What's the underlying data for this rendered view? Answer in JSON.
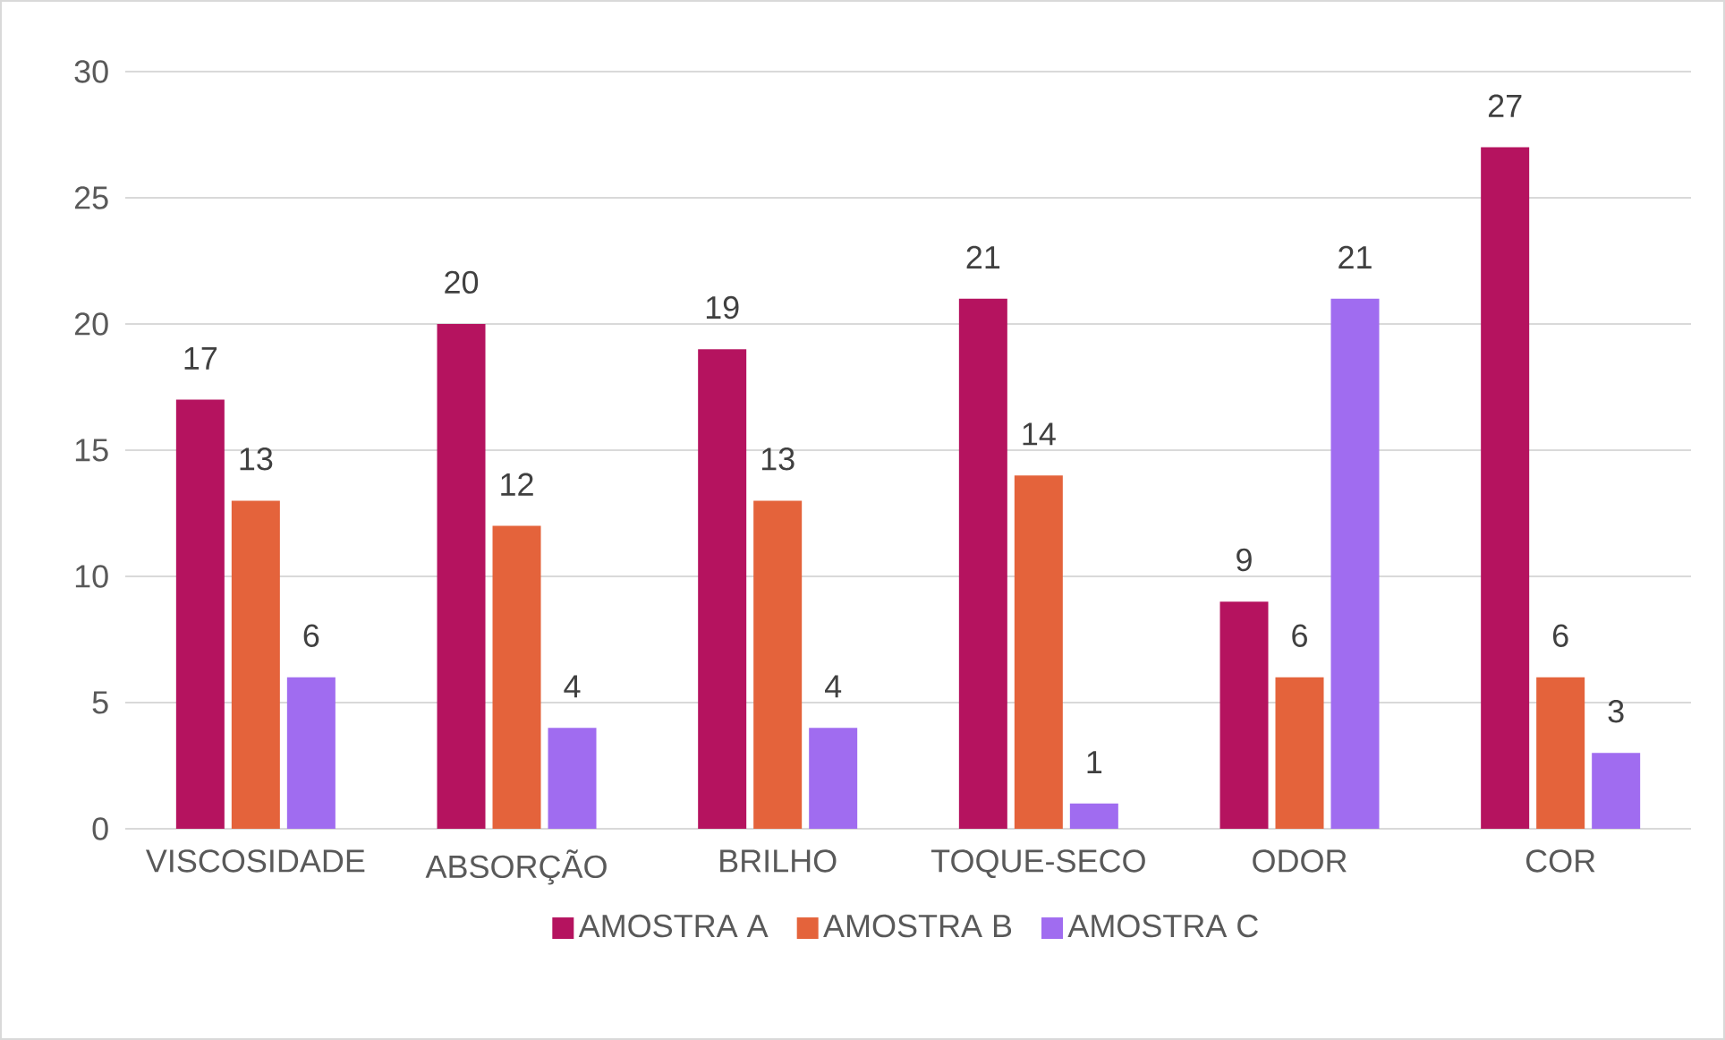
{
  "chart_data": {
    "type": "bar",
    "categories": [
      "VISCOSIDADE",
      "ABSORÇÃO",
      "BRILHO",
      "TOQUE-SECO",
      "ODOR",
      "COR"
    ],
    "series": [
      {
        "name": "AMOSTRA A",
        "color": "#b5135f",
        "values": [
          17,
          20,
          19,
          21,
          9,
          27
        ]
      },
      {
        "name": "AMOSTRA B",
        "color": "#e4633b",
        "values": [
          13,
          12,
          13,
          14,
          6,
          6
        ]
      },
      {
        "name": "AMOSTRA C",
        "color": "#a06cf0",
        "values": [
          6,
          4,
          4,
          1,
          21,
          3
        ]
      }
    ],
    "ylim": [
      0,
      30
    ],
    "yticks": [
      0,
      5,
      10,
      15,
      20,
      25,
      30
    ],
    "grid": "y",
    "legend": "bottom",
    "data_labels": true
  }
}
